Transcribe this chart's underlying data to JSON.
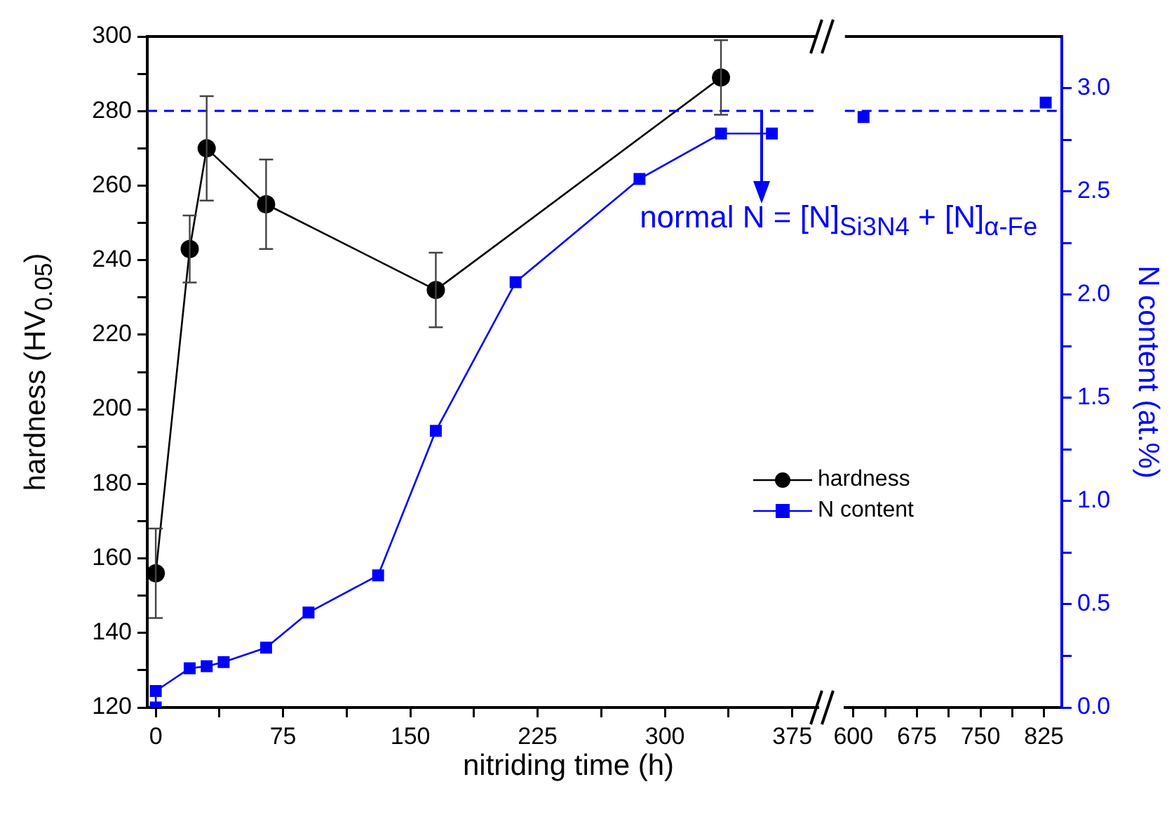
{
  "chart_data": [
    {
      "type": "line",
      "xlabel": "nitriding time (h)",
      "ylabel": "hardness (HV$_{0.05}$)",
      "xlim": [
        -5,
        390
      ],
      "xticks": [
        0,
        {
          "value": 37.5,
          "label": null
        },
        75,
        {
          "value": 112.5,
          "label": null
        },
        150,
        {
          "value": 187.5,
          "label": null
        },
        225,
        {
          "value": 262.5,
          "label": null
        },
        300,
        {
          "value": 337.5,
          "label": null
        },
        375
      ],
      "ylim": [
        120,
        300
      ],
      "yticks": [
        120,
        {
          "value": 130,
          "label": null
        },
        140,
        {
          "value": 150,
          "label": null
        },
        160,
        {
          "value": 170,
          "label": null
        },
        180,
        {
          "value": 190,
          "label": null
        },
        200,
        {
          "value": 210,
          "label": null
        },
        220,
        {
          "value": 230,
          "label": null
        },
        240,
        {
          "value": 250,
          "label": null
        },
        260,
        {
          "value": 270,
          "label": null
        },
        280,
        {
          "value": 290,
          "label": null
        },
        300
      ],
      "y2lim": [
        0,
        3.25
      ],
      "grid": false,
      "legend": "right",
      "series": [
        {
          "name": "hardness",
          "color": "#000000",
          "marker": "circle",
          "x": [
            0,
            20,
            30,
            65,
            165,
            333
          ],
          "values": [
            156,
            243,
            270,
            255,
            232,
            289
          ],
          "errors": [
            12,
            9,
            14,
            12,
            10,
            10
          ]
        },
        {
          "name": "N content",
          "color": "#0000ff",
          "marker": "square",
          "axis": "y2",
          "x": [
            0,
            0,
            20,
            30,
            40,
            65,
            90,
            131,
            165,
            212,
            285,
            333,
            363
          ],
          "values": [
            0,
            0.08,
            0.19,
            0.2,
            0.22,
            0.29,
            0.46,
            0.64,
            1.34,
            2.06,
            2.56,
            2.78,
            2.78
          ]
        }
      ],
      "ref_lines": [
        {
          "axis": "y2",
          "value": 2.89,
          "color": "#0000ff",
          "line_style": "dashed"
        }
      ],
      "annotations": [
        {
          "text": "normal N = [N]$_{Si3N4}$ + [N]$_{α-Fe}$",
          "x": 357,
          "y": 280
        }
      ]
    },
    {
      "type": "scatter",
      "y2label": "N content (at.%)",
      "xlim": [
        590,
        846
      ],
      "xticks": [
        600,
        {
          "value": 637.5,
          "label": null
        },
        675,
        {
          "value": 712.5,
          "label": null
        },
        750,
        {
          "value": 787.5,
          "label": null
        },
        825
      ],
      "y2lim": [
        0,
        3.25
      ],
      "y2ticks": [
        {
          "value": 0,
          "label": "0.0"
        },
        {
          "value": 0.25,
          "label": null
        },
        0.5,
        {
          "value": 0.75,
          "label": null
        },
        {
          "value": 1,
          "label": "1.0"
        },
        {
          "value": 1.25,
          "label": null
        },
        1.5,
        {
          "value": 1.75,
          "label": null
        },
        {
          "value": 2,
          "label": "2.0"
        },
        {
          "value": 2.25,
          "label": null
        },
        2.5,
        {
          "value": 2.75,
          "label": null
        },
        {
          "value": 3,
          "label": "3.0"
        }
      ],
      "grid": false,
      "series": [
        {
          "color": "#0000ff",
          "marker": "square",
          "axis": "y2",
          "x": [
            612,
            827
          ],
          "values": [
            2.86,
            2.93
          ]
        }
      ],
      "ref_lines": [
        {
          "axis": "y2",
          "value": 2.89,
          "color": "#0000ff",
          "line_style": "dashed"
        }
      ]
    }
  ]
}
